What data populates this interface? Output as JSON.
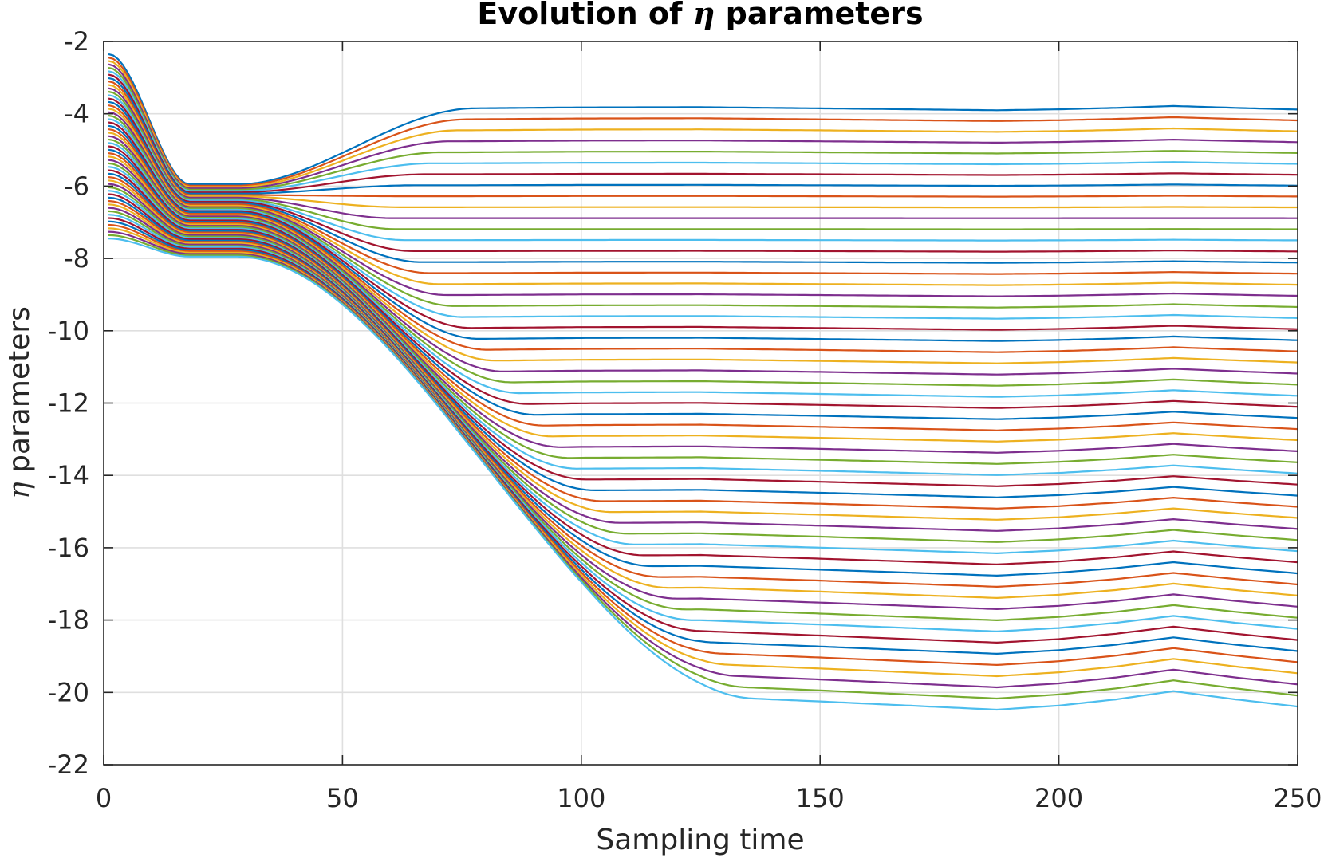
{
  "chart_data": {
    "type": "line",
    "title": "Evolution of η parameters",
    "title_prefix": "Evolution of ",
    "title_symbol": "η",
    "title_suffix": " parameters",
    "xlabel": "Sampling time",
    "ylabel": "η parameters",
    "ylabel_symbol": "η",
    "ylabel_text": " parameters",
    "xlim": [
      0,
      250
    ],
    "ylim": [
      -22,
      -2
    ],
    "xticks": [
      0,
      50,
      100,
      150,
      200,
      250
    ],
    "yticks": [
      -2,
      -4,
      -6,
      -8,
      -10,
      -12,
      -14,
      -16,
      -18,
      -20,
      -22
    ],
    "grid": true,
    "series_count": 55,
    "series_colors": [
      "#0072BD",
      "#D95319",
      "#EDB120",
      "#7E2F8E",
      "#77AC30",
      "#4DBEEE",
      "#A2142F"
    ],
    "initial_value_range": [
      -2.35,
      -7.45
    ],
    "converged_at_x": 28,
    "converged_value_range": [
      -5.95,
      -7.95
    ],
    "final_value_range": [
      -3.85,
      -20.25
    ],
    "wiggle_x": [
      0,
      28,
      50,
      75,
      100,
      125,
      150,
      187,
      200,
      212,
      224,
      237,
      250
    ],
    "wiggle_y": [
      0,
      0,
      0,
      0,
      0.04,
      0.05,
      0,
      -0.08,
      -0.04,
      0.02,
      0.1,
      0.02,
      -0.05
    ]
  }
}
